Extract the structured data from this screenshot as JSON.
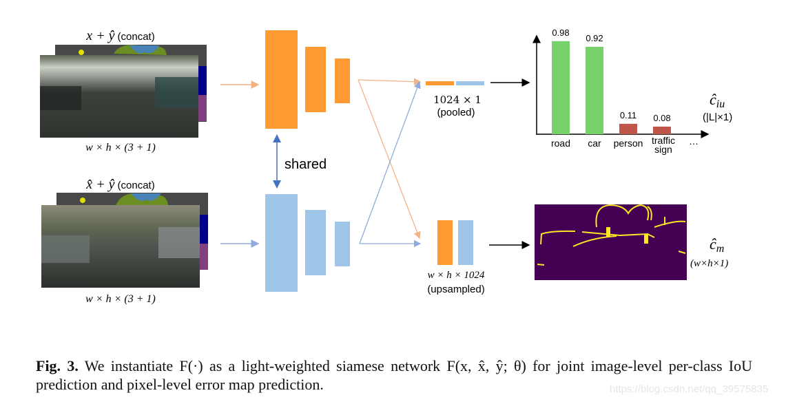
{
  "inputs": [
    {
      "label_math": "x + ŷ",
      "label_text": "(concat)",
      "dims": "w × h × (3 + 1)"
    },
    {
      "label_math": "x̂ + ŷ",
      "label_text": "(concat)",
      "dims": "w × h × (3 + 1)"
    }
  ],
  "shared_label": "shared",
  "pooled": {
    "dims": "1024 × 1",
    "label": "(pooled)"
  },
  "upsampled": {
    "dims": "w × h × 1024",
    "label": "(upsampled)"
  },
  "outputs": {
    "iou_symbol": "ĉ",
    "iou_sub": "iu",
    "iou_dims": "(|L|×1)",
    "map_symbol": "ĉ",
    "map_sub": "m",
    "map_dims": "(w×h×1)"
  },
  "chart_data": {
    "type": "bar",
    "categories": [
      "road",
      "car",
      "person",
      "traffic sign"
    ],
    "values": [
      0.98,
      0.92,
      0.11,
      0.08
    ],
    "value_labels": [
      "0.98",
      "0.92",
      "0.11",
      "0.08"
    ],
    "colors": [
      "#77d16a",
      "#77d16a",
      "#c0554a",
      "#c0554a"
    ],
    "ellipsis": "…",
    "ylim": [
      0,
      1.05
    ]
  },
  "colors": {
    "orange": "#ff9a33",
    "blue": "#9fc5e8",
    "orange_arrow": "#f6b183",
    "blue_arrow": "#8faadc",
    "error_bg": "#440154",
    "error_fg": "#fde725"
  },
  "caption": {
    "fig_label": "Fig. 3.",
    "text": "We instantiate F(·) as a light-weighted siamese network F(x, x̂, ŷ; θ) for joint image-level per-class IoU prediction and pixel-level error map prediction."
  },
  "watermark": "https://blog.csdn.net/qq_39575835"
}
